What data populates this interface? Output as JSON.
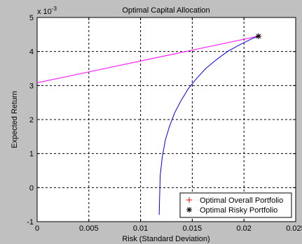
{
  "chart_data": {
    "type": "line",
    "title": "Optimal Capital Allocation",
    "xlabel": "Risk (Standard Deviation)",
    "ylabel": "Expected  Return",
    "y_exponent_label": "x 10",
    "y_exponent_power": "-3",
    "xlim": [
      0,
      0.025
    ],
    "ylim": [
      -1,
      5
    ],
    "x_ticks": [
      "0",
      "0.005",
      "0.01",
      "0.015",
      "0.02",
      "0.025"
    ],
    "x_tick_values": [
      0,
      0.005,
      0.01,
      0.015,
      0.02,
      0.025
    ],
    "y_ticks": [
      "-1",
      "0",
      "1",
      "2",
      "3",
      "4",
      "5"
    ],
    "y_tick_values": [
      -1,
      0,
      1,
      2,
      3,
      4,
      5
    ],
    "grid": true,
    "legend_position": "bottom-right",
    "series": [
      {
        "kind": "cal-line",
        "color": "#ff00ff",
        "x": [
          0,
          0.0214
        ],
        "y": [
          3.08,
          4.45
        ]
      },
      {
        "kind": "efficient-frontier",
        "color": "#0000ff",
        "x": [
          0.0118,
          0.01185,
          0.0119,
          0.0121,
          0.0124,
          0.0128,
          0.0133,
          0.0139,
          0.0146,
          0.0154,
          0.0163,
          0.0173,
          0.0184,
          0.0196,
          0.0208,
          0.0214
        ],
        "y": [
          -0.8,
          -0.2,
          0.35,
          0.9,
          1.4,
          1.8,
          2.2,
          2.55,
          2.9,
          3.2,
          3.5,
          3.75,
          4.0,
          4.2,
          4.38,
          4.45
        ]
      }
    ],
    "markers": [
      {
        "name": "Optimal Overall Portfolio",
        "symbol": "+",
        "color": "#ff0000",
        "x": 0.0214,
        "y": 4.45
      },
      {
        "name": "Optimal Risky Portfolio",
        "symbol": "*",
        "color": "#000000",
        "x": 0.0214,
        "y": 4.45
      }
    ],
    "legend": [
      {
        "label": "Optimal Overall Portfolio",
        "symbol": "+",
        "color": "#ff0000"
      },
      {
        "label": "Optimal Risky Portfolio",
        "symbol": "*",
        "color": "#000000"
      }
    ]
  }
}
